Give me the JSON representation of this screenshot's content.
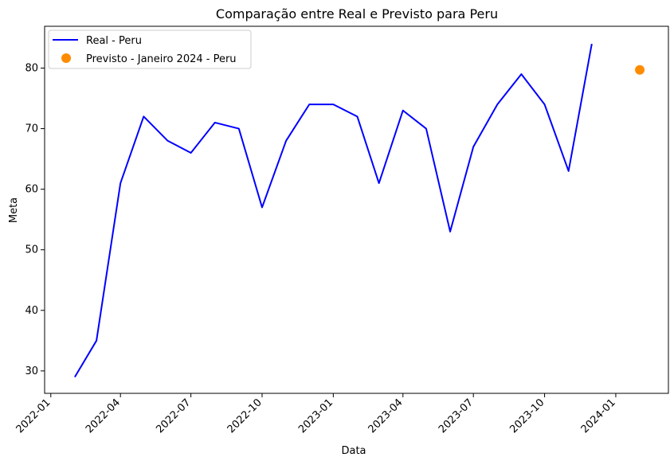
{
  "chart_data": {
    "type": "line",
    "title": "Comparação entre Real e Previsto para Peru",
    "xlabel": "Data",
    "ylabel": "Meta",
    "x_ticks": [
      "2022-01",
      "2022-04",
      "2022-07",
      "2022-10",
      "2023-01",
      "2023-04",
      "2023-07",
      "2023-10",
      "2024-01"
    ],
    "y_ticks": [
      30,
      40,
      50,
      60,
      70,
      80
    ],
    "xlim": [
      "2021-12-24",
      "2024-03-09"
    ],
    "ylim": [
      26.3,
      86.9
    ],
    "legend_position": "top-left",
    "grid": false,
    "series": [
      {
        "name": "Real - Peru",
        "type": "line",
        "color": "#0000ff",
        "x": [
          "2022-02-01",
          "2022-03-01",
          "2022-04-01",
          "2022-05-01",
          "2022-06-01",
          "2022-07-01",
          "2022-08-01",
          "2022-09-01",
          "2022-10-01",
          "2022-11-01",
          "2022-12-01",
          "2023-01-01",
          "2023-02-01",
          "2023-03-01",
          "2023-04-01",
          "2023-05-01",
          "2023-06-01",
          "2023-07-01",
          "2023-08-01",
          "2023-09-01",
          "2023-10-01",
          "2023-11-01",
          "2023-12-01"
        ],
        "values": [
          29,
          35,
          61,
          72,
          68,
          66,
          71,
          70,
          57,
          68,
          74,
          74,
          72,
          61,
          73,
          70,
          53,
          67,
          74,
          79,
          74,
          63,
          84
        ]
      },
      {
        "name": "Previsto - Janeiro 2024 - Peru",
        "type": "scatter",
        "color": "#ff8c00",
        "x": [
          "2024-02-01"
        ],
        "values": [
          79.7
        ]
      }
    ]
  }
}
